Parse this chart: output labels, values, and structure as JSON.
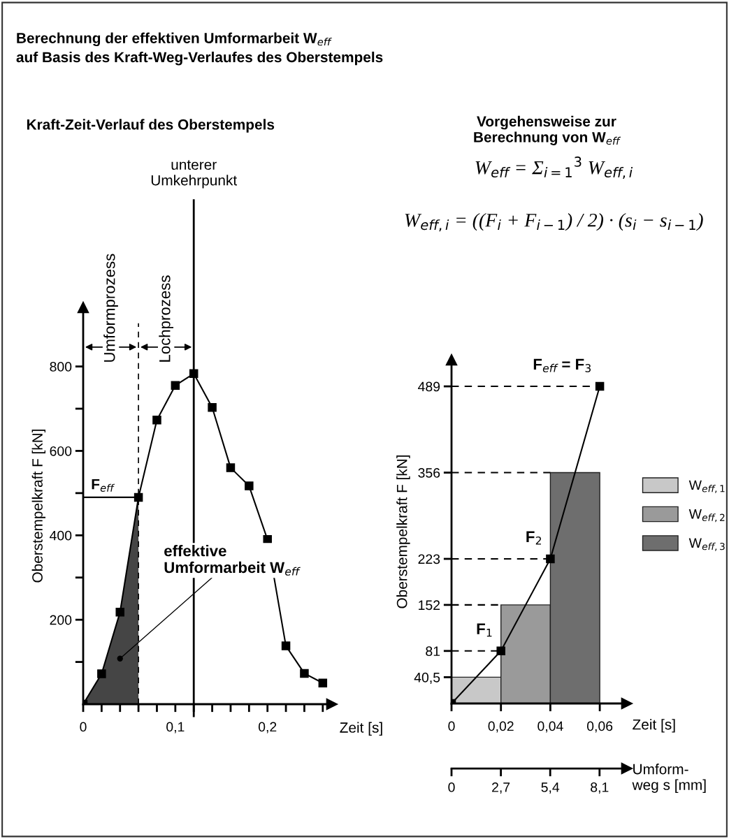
{
  "chart_data": [
    {
      "type": "line",
      "title": "Berechnung der effektiven Umformarbeit W$_{eff}$\nauf Basis des Kraft-Weg-Verlaufes des Oberstempels",
      "subtitle": "Kraft-Zeit-Verlauf des Oberstempels",
      "xlabel": "Zeit [s]",
      "ylabel": "Oberstempelkraft F [kN]",
      "xlim": [
        0,
        0.27
      ],
      "ylim": [
        0,
        940
      ],
      "xticks": [
        {
          "value": 0,
          "label": "0"
        },
        {
          "value": 0.02,
          "label": null
        },
        {
          "value": 0.04,
          "label": null
        },
        {
          "value": 0.06,
          "label": null
        },
        {
          "value": 0.08,
          "label": null
        },
        {
          "value": 0.1,
          "label": "0,1"
        },
        {
          "value": 0.12,
          "label": null
        },
        {
          "value": 0.14,
          "label": null
        },
        {
          "value": 0.16,
          "label": null
        },
        {
          "value": 0.18,
          "label": null
        },
        {
          "value": 0.2,
          "label": "0,2"
        },
        {
          "value": 0.22,
          "label": null
        },
        {
          "value": 0.24,
          "label": null
        },
        {
          "value": 0.26,
          "label": null
        }
      ],
      "yticks": [
        {
          "value": 100,
          "label": null
        },
        200,
        {
          "value": 300,
          "label": null
        },
        400,
        {
          "value": 500,
          "label": null
        },
        600,
        {
          "value": 700,
          "label": null
        },
        800
      ],
      "series": [
        {
          "type": "area",
          "color": "#454545",
          "x": [
            0,
            0.02,
            0.04,
            0.06
          ],
          "values": [
            0,
            72,
            218,
            490
          ]
        },
        {
          "marker": "square",
          "color": "#000000",
          "x": [
            0,
            0.02,
            0.04,
            0.06,
            0.08,
            0.1,
            0.12,
            0.14,
            0.16,
            0.18,
            0.2,
            0.22,
            0.24,
            0.26
          ],
          "values": [
            0,
            72,
            218,
            490,
            673,
            755,
            783,
            703,
            560,
            517,
            390,
            138,
            73,
            50
          ]
        }
      ],
      "ref_lines": [
        {
          "axis": "y",
          "value": 490,
          "label": "F$_{eff}$",
          "color": "#000000",
          "line_style": "solid"
        },
        {
          "axis": "x",
          "value": 0.06,
          "color": "#000000",
          "line_style": "dashed"
        },
        {
          "axis": "x",
          "value": 0.12,
          "label": "unterer\nUmkehrpunkt",
          "color": "#000000",
          "line_style": "solid"
        }
      ],
      "annotations": [
        "Umformprozess",
        "Lochprozess",
        {
          "text": "effektive\nUmformarbeit W$_{eff}$",
          "x": 0.04,
          "y": 108
        }
      ],
      "line_style": "solid",
      "grid": false,
      "legend": false
    },
    {
      "type": "line",
      "title": "Vorgehensweise zur\nBerechnung von W$_{eff}$",
      "xlabel": "Zeit [s]",
      "ylabel": "Oberstempelkraft F [kN]",
      "xlim": [
        0,
        0.071
      ],
      "ylim": [
        0,
        530
      ],
      "xticks": [
        0,
        {
          "value": 0.02,
          "label": "0,02"
        },
        {
          "value": 0.04,
          "label": "0,04"
        },
        {
          "value": 0.06,
          "label": "0,06"
        }
      ],
      "yticks": [
        {
          "value": 40.5,
          "label": "40,5"
        },
        81,
        152,
        223,
        356,
        489
      ],
      "x2lim": [
        0,
        9.6
      ],
      "x2ticks": [
        0,
        {
          "value": 2.7,
          "label": "2,7"
        },
        {
          "value": 5.4,
          "label": "5,4"
        },
        {
          "value": 8.1,
          "label": "8,1"
        }
      ],
      "x2label": "Umform-\nweg s [mm]",
      "series": [
        {
          "type": "bar",
          "name": "W$_{eff,1}$",
          "color": "#c8c8c8",
          "x": [
            0.01
          ],
          "values": [
            40.5
          ]
        },
        {
          "type": "bar",
          "name": "W$_{eff,2}$",
          "color": "#9a9a9a",
          "x": [
            0.03
          ],
          "values": [
            152
          ]
        },
        {
          "type": "bar",
          "name": "W$_{eff,3}$",
          "color": "#6e6e6e",
          "x": [
            0.05
          ],
          "values": [
            356
          ]
        },
        {
          "marker": "square",
          "color": "#000000",
          "x": [
            0,
            0.02,
            0.04,
            0.06
          ],
          "values": [
            0,
            81,
            223,
            489
          ]
        }
      ],
      "ref_lines": [
        {
          "axis": "y",
          "value": 81,
          "color": "#000000",
          "line_style": "dashed"
        },
        {
          "axis": "y",
          "value": 152,
          "color": "#000000",
          "line_style": "dashed"
        },
        {
          "axis": "y",
          "value": 223,
          "color": "#000000",
          "line_style": "dashed"
        },
        {
          "axis": "y",
          "value": 356,
          "color": "#000000",
          "line_style": "dashed"
        },
        {
          "axis": "y",
          "value": 489,
          "color": "#000000",
          "line_style": "dashed"
        }
      ],
      "annotations": [
        "W$_{eff}$ = Σ$_{i=1}$$^{3}$ W$_{eff,i}$",
        "W$_{eff,i}$ = ((F$_{i}$ + F$_{i−1}$) / 2) · (s$_{i}$ − s$_{i−1}$)",
        {
          "text": "F$_{1}$",
          "x": 0.02,
          "y": 81
        },
        {
          "text": "F$_{2}$",
          "x": 0.04,
          "y": 223
        },
        {
          "text": "F$_{eff}$ = F$_{3}$",
          "x": 0.06,
          "y": 489
        }
      ],
      "line_style": "solid",
      "grid": false,
      "legend": "right"
    }
  ]
}
